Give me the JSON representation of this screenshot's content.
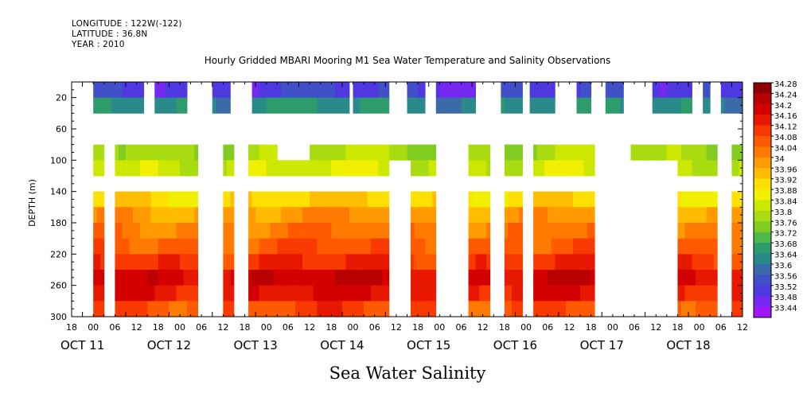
{
  "header": {
    "longitude": "LONGITUDE : 122W(-122)",
    "latitude": "LATITUDE : 36.8N",
    "year": "YEAR : 2010"
  },
  "chart_data": {
    "type": "heatmap",
    "title": "Hourly Gridded MBARI Mooring M1 Sea Water Temperature and Salinity Observations",
    "xlabel": "Sea Water Salinity",
    "ylabel": "DEPTH (m)",
    "ylim": [
      300,
      0
    ],
    "y_ticks": [
      20,
      60,
      100,
      140,
      180,
      220,
      260,
      300
    ],
    "x_hour_ticks": [
      "18",
      "00",
      "06",
      "12",
      "18",
      "00",
      "06",
      "12",
      "18",
      "00",
      "06",
      "12",
      "18",
      "00",
      "06",
      "12",
      "18",
      "00",
      "06",
      "12",
      "18",
      "00",
      "06",
      "12",
      "18",
      "00",
      "06",
      "12",
      "18",
      "00",
      "06",
      "12"
    ],
    "x_day_labels": [
      "OCT 11",
      "OCT 12",
      "OCT 13",
      "OCT 14",
      "OCT 15",
      "OCT 16",
      "OCT 17",
      "OCT 18"
    ],
    "colorbar_levels": [
      "34.28",
      "34.24",
      "34.2",
      "34.16",
      "34.12",
      "34.08",
      "34.04",
      "34",
      "33.96",
      "33.92",
      "33.88",
      "33.84",
      "33.8",
      "33.76",
      "33.72",
      "33.68",
      "33.64",
      "33.6",
      "33.56",
      "33.52",
      "33.48",
      "33.44"
    ],
    "colorbar_colors": [
      "#8c0000",
      "#b80000",
      "#d40000",
      "#e81800",
      "#f83a00",
      "#ff5a00",
      "#ff7a00",
      "#ff9a00",
      "#ffbc00",
      "#ffe000",
      "#f0f000",
      "#cce800",
      "#a8dc10",
      "#80cc20",
      "#50b848",
      "#2c9c6c",
      "#2a8a8a",
      "#3a6aa8",
      "#4050c8",
      "#5038e0",
      "#7428f0",
      "#a018f8"
    ],
    "depth_levels": [
      10,
      30,
      90,
      110,
      150,
      170,
      190,
      210,
      230,
      250,
      270,
      290
    ],
    "layer_salinity": [
      33.55,
      33.67,
      33.82,
      33.86,
      33.95,
      34.02,
      34.06,
      34.1,
      34.15,
      34.22,
      34.19,
      34.12
    ],
    "missing_hours": {
      "shallow": [
        [
          0,
          12
        ],
        [
          40,
          46
        ],
        [
          64,
          76
        ],
        [
          76,
          78
        ],
        [
          88,
          98
        ],
        [
          98,
          100
        ],
        [
          154,
          156
        ],
        [
          176,
          186
        ],
        [
          196,
          202
        ],
        [
          224,
          238
        ],
        [
          250,
          254
        ],
        [
          268,
          280
        ],
        [
          288,
          296
        ],
        [
          306,
          322
        ],
        [
          344,
          350
        ],
        [
          354,
          360
        ]
      ],
      "mid": [
        [
          0,
          12
        ],
        [
          18,
          24
        ],
        [
          70,
          84
        ],
        [
          90,
          98
        ],
        [
          114,
          132
        ],
        [
          202,
          220
        ],
        [
          232,
          240
        ],
        [
          250,
          256
        ],
        [
          290,
          310
        ],
        [
          358,
          366
        ]
      ],
      "deep": [
        [
          0,
          12
        ],
        [
          18,
          24
        ],
        [
          70,
          84
        ],
        [
          90,
          98
        ],
        [
          176,
          188
        ],
        [
          202,
          220
        ],
        [
          232,
          240
        ],
        [
          250,
          256
        ],
        [
          290,
          336
        ],
        [
          358,
          366
        ]
      ]
    }
  }
}
